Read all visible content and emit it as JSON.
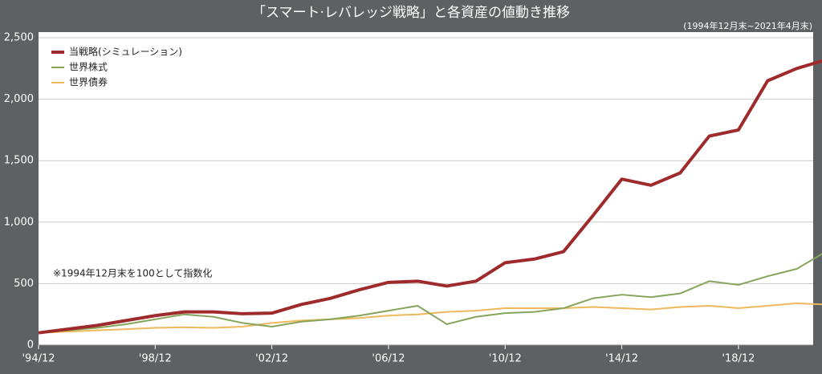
{
  "chart_data": {
    "type": "line",
    "title": "「スマート·レバレッジ戦略」と各資産の値動き推移",
    "subtitle": "(1994年12月末~2021年4月末)",
    "annotation": "※1994年12月末を100として指数化",
    "categories": [
      "'94/12",
      null,
      null,
      null,
      "'98/12",
      null,
      null,
      null,
      "'02/12",
      null,
      null,
      null,
      "'06/12",
      null,
      null,
      null,
      "'10/12",
      null,
      null,
      null,
      "'14/12",
      null,
      null,
      null,
      "'18/12",
      null,
      null,
      null
    ],
    "series": [
      {
        "name": "当戦略(シミュレーション)",
        "color": "#9e2a2b",
        "values": [
          100,
          130,
          160,
          200,
          240,
          270,
          270,
          255,
          260,
          330,
          380,
          450,
          510,
          520,
          480,
          520,
          670,
          700,
          760,
          1050,
          1350,
          1300,
          1400,
          1700,
          1750,
          2150,
          2250,
          2320
        ]
      },
      {
        "name": "世界株式",
        "color": "#86a55a",
        "values": [
          100,
          120,
          140,
          170,
          210,
          250,
          230,
          180,
          150,
          190,
          210,
          240,
          280,
          320,
          170,
          230,
          260,
          270,
          300,
          380,
          410,
          390,
          420,
          520,
          490,
          560,
          620,
          760
        ]
      },
      {
        "name": "世界債券",
        "color": "#eeb85c",
        "values": [
          100,
          110,
          120,
          130,
          140,
          145,
          140,
          150,
          180,
          200,
          210,
          220,
          240,
          250,
          270,
          280,
          300,
          300,
          300,
          310,
          300,
          290,
          310,
          320,
          300,
          320,
          340,
          330
        ]
      }
    ],
    "ylim": [
      0,
      2500
    ],
    "yticks": [
      0,
      500,
      {
        "value": 1000,
        "label": "1,000"
      },
      {
        "value": 1500,
        "label": "1,500"
      },
      {
        "value": 2000,
        "label": "2,000"
      },
      {
        "value": 2500,
        "label": "2,500"
      }
    ],
    "grid": true,
    "legend": "upper left"
  }
}
